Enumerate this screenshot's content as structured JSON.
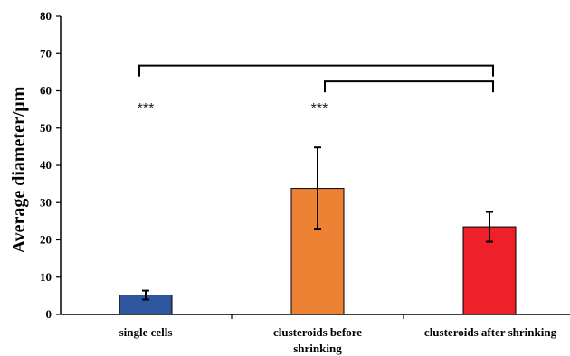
{
  "chart_data": {
    "type": "bar",
    "ylabel": "Average diameter/μm",
    "ylim": [
      0,
      80
    ],
    "yticks": [
      0,
      10,
      20,
      30,
      40,
      50,
      60,
      70,
      80
    ],
    "categories": [
      {
        "lines": [
          "single cells"
        ]
      },
      {
        "lines": [
          "clusteroids before",
          "shrinking"
        ]
      },
      {
        "lines": [
          "clusteroids after shrinking"
        ]
      }
    ],
    "values": [
      5.2,
      33.8,
      23.5
    ],
    "errors": [
      [
        4.0,
        6.4
      ],
      [
        23.0,
        44.8
      ],
      [
        19.5,
        27.5
      ]
    ],
    "colors": [
      "#2e57a0",
      "#ed8235",
      "#ee2029"
    ],
    "significance": [
      {
        "from": 0,
        "to": 2,
        "y": 67,
        "label": "***"
      },
      {
        "from": 1,
        "to": 2,
        "y": 63,
        "label": "***"
      }
    ],
    "grid": false,
    "legend": "none"
  }
}
